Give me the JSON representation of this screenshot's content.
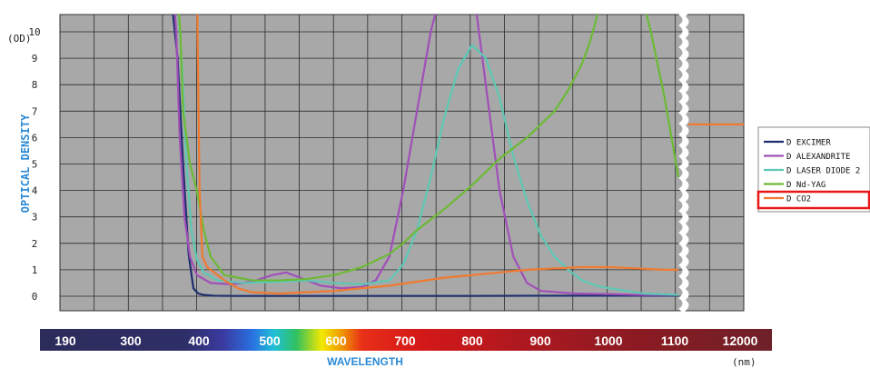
{
  "chart_data": {
    "type": "line",
    "title": "",
    "ylabel": "OPTICAL DENSITY",
    "yunit": "(OD)",
    "xlabel": "WAVELENGTH",
    "xunit": "(nm)",
    "ylim": [
      0,
      11
    ],
    "yticks": [
      "0",
      "1",
      "2",
      "3",
      "4",
      "5",
      "6",
      "7",
      "8",
      "9",
      "10"
    ],
    "xticks": [
      "190",
      "300",
      "400",
      "500",
      "600",
      "700",
      "800",
      "900",
      "1000",
      "1100",
      "12000"
    ],
    "x_scale_note": "axis break between 1100 and 12000",
    "grid": true,
    "legend_position": "right",
    "legend_highlight": "D CO2",
    "series": [
      {
        "name": "D EXCIMER",
        "color": "#1e2f6e",
        "x": [
          190,
          360,
          372,
          380,
          388,
          395,
          402,
          410,
          425,
          450,
          500,
          600,
          700,
          800,
          900,
          1000,
          1100
        ],
        "y": [
          11,
          11,
          9,
          5,
          1.6,
          0.3,
          0.1,
          0.05,
          0.02,
          0.01,
          0.01,
          0.01,
          0.01,
          0.01,
          0.02,
          0.02,
          0.02
        ]
      },
      {
        "name": "D ALEXANDRITE",
        "color": "#a050b8",
        "x": [
          190,
          365,
          370,
          375,
          382,
          390,
          400,
          420,
          450,
          480,
          510,
          530,
          550,
          580,
          610,
          640,
          660,
          680,
          700,
          720,
          740,
          760,
          780,
          800,
          820,
          840,
          860,
          880,
          900,
          950,
          1000,
          1050,
          1100
        ],
        "y": [
          11,
          11,
          10,
          6,
          3,
          1.5,
          0.8,
          0.5,
          0.45,
          0.55,
          0.8,
          0.9,
          0.7,
          0.4,
          0.3,
          0.35,
          0.6,
          1.5,
          4,
          7,
          10,
          11,
          11,
          11,
          8,
          4,
          1.5,
          0.5,
          0.2,
          0.1,
          0.08,
          0.05,
          0.05
        ]
      },
      {
        "name": "D LASER DIODE 2",
        "color": "#5cc8b4",
        "x": [
          190,
          370,
          378,
          385,
          392,
          400,
          410,
          430,
          470,
          520,
          560,
          600,
          640,
          680,
          700,
          720,
          740,
          760,
          780,
          800,
          820,
          840,
          860,
          880,
          900,
          920,
          940,
          960,
          980,
          1000,
          1050,
          1100
        ],
        "y": [
          11,
          11,
          9,
          5,
          2.5,
          1.4,
          0.9,
          0.6,
          0.5,
          0.55,
          0.6,
          0.5,
          0.45,
          0.6,
          1.2,
          2.5,
          4.5,
          6.8,
          8.6,
          9.5,
          9,
          7.5,
          5.3,
          3.6,
          2.3,
          1.5,
          1,
          0.6,
          0.4,
          0.3,
          0.1,
          0.05
        ]
      },
      {
        "name": "D Nd-YAG",
        "color": "#6cba34",
        "x": [
          190,
          370,
          376,
          380,
          390,
          400,
          410,
          420,
          440,
          460,
          480,
          520,
          560,
          600,
          640,
          680,
          700,
          720,
          760,
          800,
          820,
          840,
          860,
          880,
          900,
          920,
          940,
          960,
          970,
          980,
          990,
          1000,
          1010,
          1020,
          1040,
          1060,
          1080,
          1100
        ],
        "y": [
          11,
          11,
          10,
          7,
          5,
          4,
          2.5,
          1.5,
          0.8,
          0.7,
          0.6,
          0.6,
          0.65,
          0.8,
          1.1,
          1.6,
          2,
          2.5,
          3.3,
          4.2,
          4.7,
          5.2,
          5.6,
          6,
          6.5,
          7,
          7.8,
          8.8,
          9.5,
          10.2,
          10.8,
          11,
          11,
          11,
          11,
          10,
          7.5,
          4.5
        ]
      },
      {
        "name": "D CO2",
        "color": "#f07a30",
        "x": [
          190,
          400,
          402,
          404,
          408,
          415,
          425,
          440,
          460,
          480,
          520,
          560,
          600,
          640,
          680,
          720,
          760,
          800,
          840,
          880,
          920,
          960,
          1000,
          1040,
          1080,
          1100,
          "12000L",
          "12000R"
        ],
        "y": [
          11,
          11,
          8,
          4,
          1.5,
          1.1,
          0.9,
          0.6,
          0.3,
          0.15,
          0.1,
          0.15,
          0.2,
          0.3,
          0.4,
          0.55,
          0.7,
          0.8,
          0.9,
          1.0,
          1.05,
          1.1,
          1.1,
          1.05,
          1.0,
          1.0,
          6.5,
          6.5
        ]
      }
    ]
  }
}
